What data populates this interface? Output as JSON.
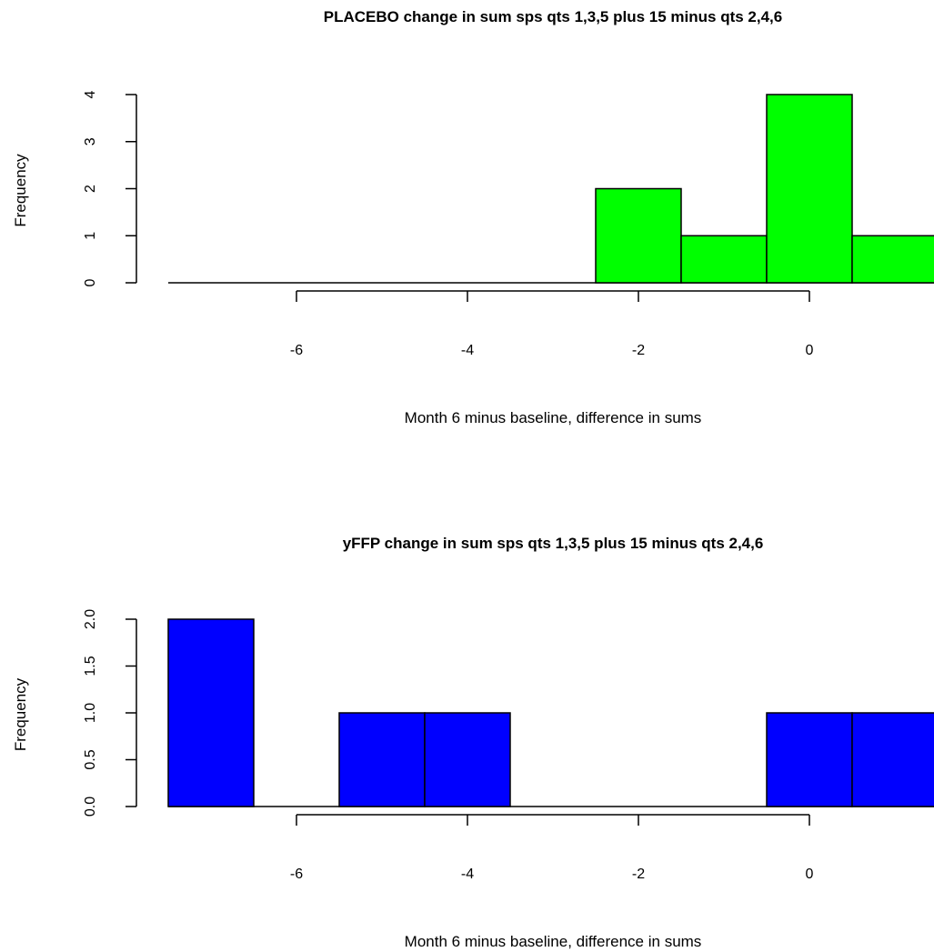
{
  "chart_data": [
    {
      "type": "bar",
      "title": "PLACEBO change in sum sps qts 1,3,5 plus 15 minus qts 2,4,6",
      "xlabel": "Month 6 minus baseline, difference in sums",
      "ylabel": "Frequency",
      "bar_color": "#00ff00",
      "bins": [
        {
          "from": -7.5,
          "to": -6.5,
          "count": 0
        },
        {
          "from": -6.5,
          "to": -5.5,
          "count": 0
        },
        {
          "from": -5.5,
          "to": -4.5,
          "count": 0
        },
        {
          "from": -4.5,
          "to": -3.5,
          "count": 0
        },
        {
          "from": -3.5,
          "to": -2.5,
          "count": 0
        },
        {
          "from": -2.5,
          "to": -1.5,
          "count": 2
        },
        {
          "from": -1.5,
          "to": -0.5,
          "count": 1
        },
        {
          "from": -0.5,
          "to": 0.5,
          "count": 4
        },
        {
          "from": 0.5,
          "to": 1.5,
          "count": 1
        }
      ],
      "xlim": [
        -7.5,
        1.5
      ],
      "ylim": [
        0,
        4
      ],
      "xticks": [
        "-6",
        "-4",
        "-2",
        "0"
      ],
      "xtick_values": [
        -6,
        -4,
        -2,
        0
      ],
      "yticks": [
        "0",
        "1",
        "2",
        "3",
        "4"
      ],
      "ytick_values": [
        0,
        1,
        2,
        3,
        4
      ]
    },
    {
      "type": "bar",
      "title": "yFFP change in sum sps qts 1,3,5 plus 15 minus qts 2,4,6",
      "xlabel": "Month 6 minus baseline, difference in sums",
      "ylabel": "Frequency",
      "bar_color": "#0000ff",
      "bins": [
        {
          "from": -7.5,
          "to": -6.5,
          "count": 2
        },
        {
          "from": -6.5,
          "to": -5.5,
          "count": 0
        },
        {
          "from": -5.5,
          "to": -4.5,
          "count": 1
        },
        {
          "from": -4.5,
          "to": -3.5,
          "count": 1
        },
        {
          "from": -3.5,
          "to": -2.5,
          "count": 0
        },
        {
          "from": -2.5,
          "to": -1.5,
          "count": 0
        },
        {
          "from": -1.5,
          "to": -0.5,
          "count": 0
        },
        {
          "from": -0.5,
          "to": 0.5,
          "count": 1
        },
        {
          "from": 0.5,
          "to": 1.5,
          "count": 1
        }
      ],
      "xlim": [
        -7.5,
        1.5
      ],
      "ylim": [
        0,
        2
      ],
      "xticks": [
        "-6",
        "-4",
        "-2",
        "0"
      ],
      "xtick_values": [
        -6,
        -4,
        -2,
        0
      ],
      "yticks": [
        "0.0",
        "0.5",
        "1.0",
        "1.5",
        "2.0"
      ],
      "ytick_values": [
        0,
        0.5,
        1,
        1.5,
        2
      ]
    }
  ]
}
